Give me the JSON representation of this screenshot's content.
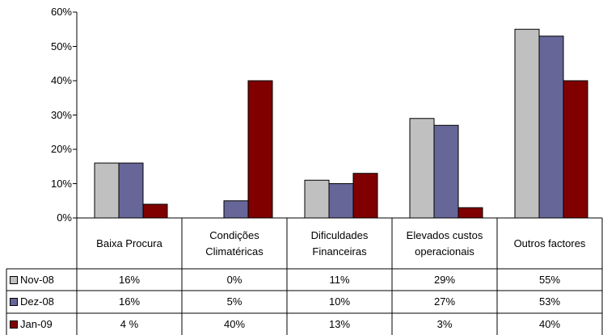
{
  "chart_data": {
    "type": "bar",
    "categories": [
      "Baixa Procura",
      "Condições Climatéricas",
      "Dificuldades Financeiras",
      "Elevados custos operacionais",
      "Outros factores"
    ],
    "series": [
      {
        "name": "Nov-08",
        "color": "#c0c0c0",
        "values": [
          16,
          0,
          11,
          29,
          55
        ],
        "value_labels": [
          "16%",
          "0%",
          "11%",
          "29%",
          "55%"
        ]
      },
      {
        "name": "Dez-08",
        "color": "#666699",
        "values": [
          16,
          5,
          10,
          27,
          53
        ],
        "value_labels": [
          "16%",
          "5%",
          "10%",
          "27%",
          "53%"
        ]
      },
      {
        "name": "Jan-09",
        "color": "#800000",
        "values": [
          4,
          40,
          13,
          3,
          40
        ],
        "value_labels": [
          "4 %",
          "40%",
          "13%",
          "3%",
          "40%"
        ]
      }
    ],
    "ylim": [
      0,
      60
    ],
    "yticks": [
      {
        "value": 0,
        "label": "0%"
      },
      {
        "value": 10,
        "label": "10%"
      },
      {
        "value": 20,
        "label": "20%"
      },
      {
        "value": 30,
        "label": "30%"
      },
      {
        "value": 40,
        "label": "40%"
      },
      {
        "value": 50,
        "label": "50%"
      },
      {
        "value": 60,
        "label": "60%"
      }
    ],
    "grid": false
  }
}
